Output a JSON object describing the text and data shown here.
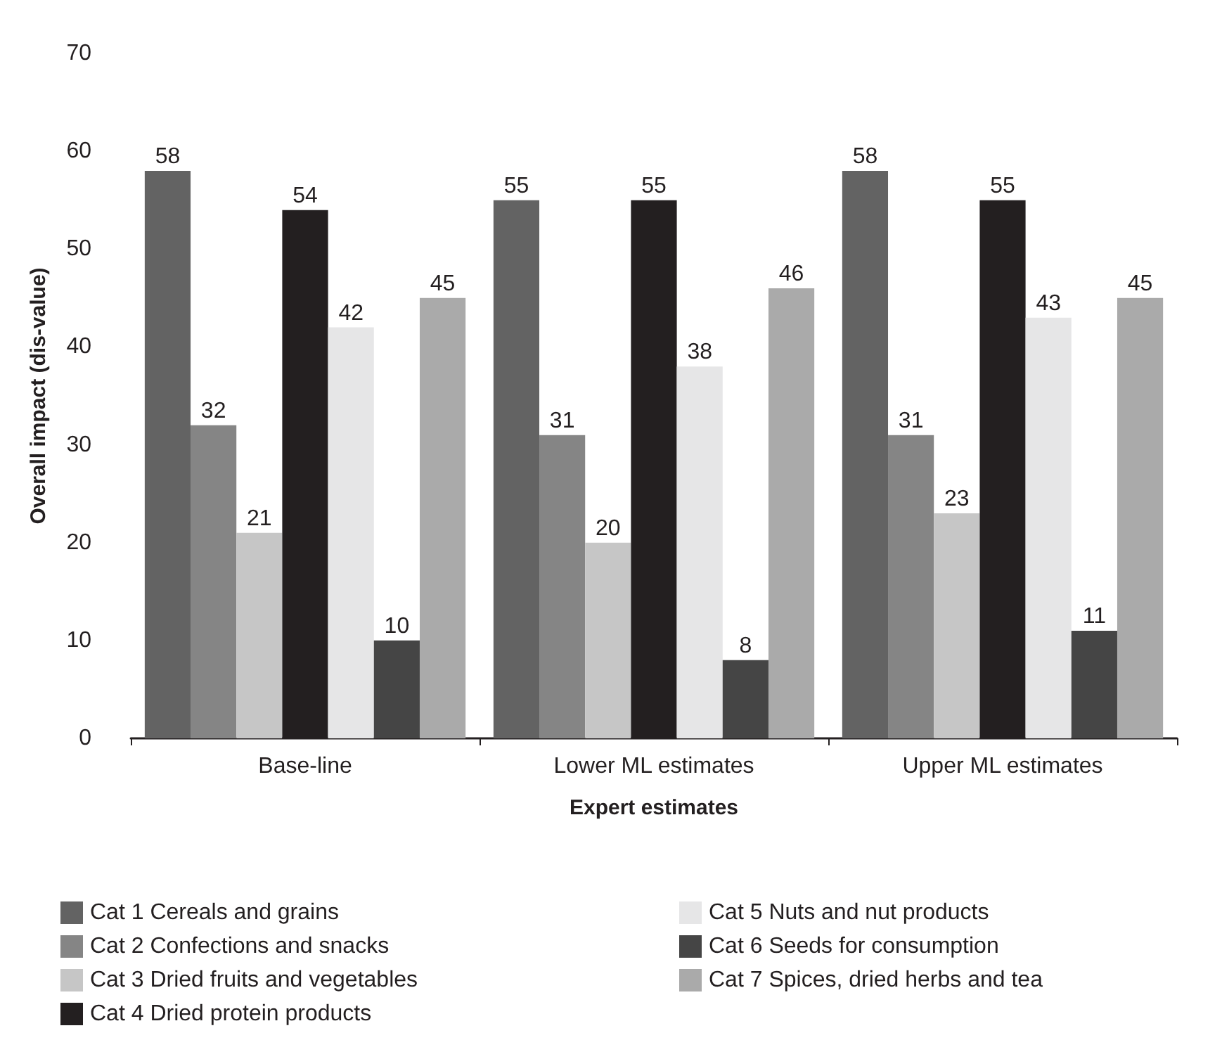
{
  "chart_data": {
    "type": "bar",
    "xlabel": "Expert estimates",
    "ylabel": "Overall impact (dis-value)",
    "categories": [
      "Base-line",
      "Lower ML estimates",
      "Upper ML estimates"
    ],
    "series": [
      {
        "name": "Cat 1 Cereals and grains",
        "color": "#636363",
        "values": [
          58,
          55,
          58
        ]
      },
      {
        "name": "Cat 2 Confections and snacks",
        "color": "#858585",
        "values": [
          32,
          31,
          31
        ]
      },
      {
        "name": "Cat 3 Dried fruits and vegetables",
        "color": "#c6c6c6",
        "values": [
          21,
          20,
          23
        ]
      },
      {
        "name": "Cat 4 Dried protein products",
        "color": "#231f20",
        "values": [
          54,
          55,
          55
        ]
      },
      {
        "name": "Cat 5 Nuts and nut products",
        "color": "#e6e6e7",
        "values": [
          42,
          38,
          43
        ]
      },
      {
        "name": "Cat 6 Seeds for consumption",
        "color": "#454545",
        "values": [
          10,
          8,
          11
        ]
      },
      {
        "name": "Cat 7 Spices, dried herbs and tea",
        "color": "#aaaaaa",
        "values": [
          45,
          46,
          45
        ]
      }
    ],
    "ylim": [
      0,
      70
    ],
    "yticks": [
      0,
      10,
      20,
      30,
      40,
      50,
      60,
      70
    ],
    "data_labels": true,
    "legend": "bottom",
    "grid": false
  }
}
